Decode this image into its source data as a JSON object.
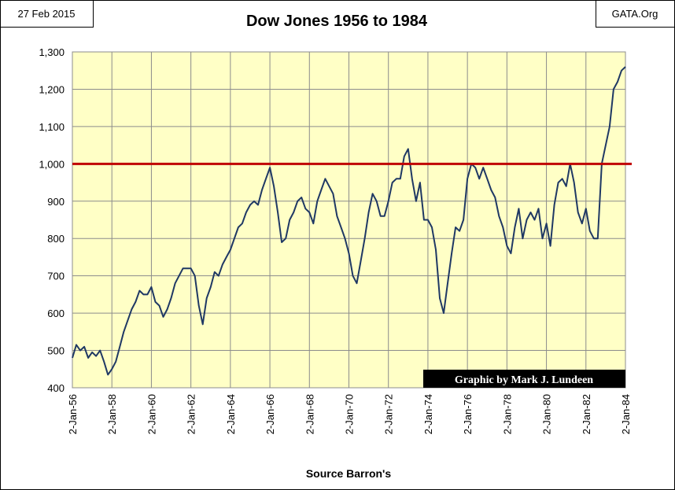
{
  "chart_data": {
    "type": "line",
    "title": "Dow Jones 1956 to 1984",
    "annotations": {
      "date": "27 Feb 2015",
      "source_site": "GATA.Org",
      "credit": "Graphic by Mark J. Lundeen"
    },
    "xlabel": "Source Barron's",
    "xlim": [
      1956,
      1984
    ],
    "xticks": [
      {
        "value": 1956,
        "label": "2-Jan-56"
      },
      {
        "value": 1958,
        "label": "2-Jan-58"
      },
      {
        "value": 1960,
        "label": "2-Jan-60"
      },
      {
        "value": 1962,
        "label": "2-Jan-62"
      },
      {
        "value": 1964,
        "label": "2-Jan-64"
      },
      {
        "value": 1966,
        "label": "2-Jan-66"
      },
      {
        "value": 1968,
        "label": "2-Jan-68"
      },
      {
        "value": 1970,
        "label": "2-Jan-70"
      },
      {
        "value": 1972,
        "label": "2-Jan-72"
      },
      {
        "value": 1974,
        "label": "2-Jan-74"
      },
      {
        "value": 1976,
        "label": "2-Jan-76"
      },
      {
        "value": 1978,
        "label": "2-Jan-78"
      },
      {
        "value": 1980,
        "label": "2-Jan-80"
      },
      {
        "value": 1982,
        "label": "2-Jan-82"
      },
      {
        "value": 1984,
        "label": "2-Jan-84"
      }
    ],
    "ylim": [
      400,
      1300
    ],
    "yticks": [
      400,
      500,
      600,
      700,
      800,
      900,
      {
        "value": 1000,
        "label": "1,000"
      },
      {
        "value": 1100,
        "label": "1,100"
      },
      {
        "value": 1200,
        "label": "1,200"
      },
      {
        "value": 1300,
        "label": "1,300"
      }
    ],
    "grid": true,
    "reference_line": {
      "value": 1000,
      "color": "#c00000"
    },
    "x": [
      1956,
      1956.2,
      1956.4,
      1956.6,
      1956.8,
      1957,
      1957.2,
      1957.4,
      1957.6,
      1957.8,
      1958,
      1958.2,
      1958.4,
      1958.6,
      1958.8,
      1959,
      1959.2,
      1959.4,
      1959.6,
      1959.8,
      1960,
      1960.2,
      1960.4,
      1960.6,
      1960.8,
      1961,
      1961.2,
      1961.4,
      1961.6,
      1961.8,
      1962,
      1962.2,
      1962.4,
      1962.6,
      1962.8,
      1963,
      1963.2,
      1963.4,
      1963.6,
      1963.8,
      1964,
      1964.2,
      1964.4,
      1964.6,
      1964.8,
      1965,
      1965.2,
      1965.4,
      1965.6,
      1965.8,
      1966,
      1966.2,
      1966.4,
      1966.6,
      1966.8,
      1967,
      1967.2,
      1967.4,
      1967.6,
      1967.8,
      1968,
      1968.2,
      1968.4,
      1968.6,
      1968.8,
      1969,
      1969.2,
      1969.4,
      1969.6,
      1969.8,
      1970,
      1970.2,
      1970.4,
      1970.6,
      1970.8,
      1971,
      1971.2,
      1971.4,
      1971.6,
      1971.8,
      1972,
      1972.2,
      1972.4,
      1972.6,
      1972.8,
      1973,
      1973.2,
      1973.4,
      1973.6,
      1973.8,
      1974,
      1974.2,
      1974.4,
      1974.6,
      1974.8,
      1975,
      1975.2,
      1975.4,
      1975.6,
      1975.8,
      1976,
      1976.2,
      1976.4,
      1976.6,
      1976.8,
      1977,
      1977.2,
      1977.4,
      1977.6,
      1977.8,
      1978,
      1978.2,
      1978.4,
      1978.6,
      1978.8,
      1979,
      1979.2,
      1979.4,
      1979.6,
      1979.8,
      1980,
      1980.2,
      1980.4,
      1980.6,
      1980.8,
      1981,
      1981.2,
      1981.4,
      1981.6,
      1981.8,
      1982,
      1982.2,
      1982.4,
      1982.6,
      1982.8,
      1983,
      1983.2,
      1983.4,
      1983.6,
      1983.8,
      1984
    ],
    "series": [
      {
        "name": "Dow Jones",
        "color": "#1f3864",
        "values": [
          480,
          515,
          500,
          510,
          480,
          495,
          485,
          500,
          470,
          435,
          450,
          470,
          510,
          550,
          580,
          610,
          630,
          660,
          650,
          650,
          670,
          630,
          620,
          590,
          610,
          640,
          680,
          700,
          720,
          720,
          720,
          700,
          620,
          570,
          640,
          670,
          710,
          700,
          730,
          750,
          770,
          800,
          830,
          840,
          870,
          890,
          900,
          890,
          930,
          960,
          990,
          940,
          870,
          790,
          800,
          850,
          870,
          900,
          910,
          880,
          870,
          840,
          900,
          930,
          960,
          940,
          920,
          860,
          830,
          800,
          760,
          700,
          680,
          740,
          800,
          870,
          920,
          900,
          860,
          860,
          900,
          950,
          960,
          960,
          1020,
          1040,
          960,
          900,
          950,
          850,
          850,
          830,
          770,
          640,
          600,
          680,
          760,
          830,
          820,
          850,
          960,
          1000,
          990,
          960,
          990,
          960,
          930,
          910,
          860,
          830,
          780,
          760,
          830,
          880,
          800,
          850,
          870,
          850,
          880,
          800,
          840,
          780,
          890,
          950,
          960,
          940,
          1000,
          950,
          870,
          840,
          880,
          820,
          800,
          800,
          1000,
          1050,
          1100,
          1200,
          1220,
          1250,
          1260
        ]
      }
    ]
  }
}
